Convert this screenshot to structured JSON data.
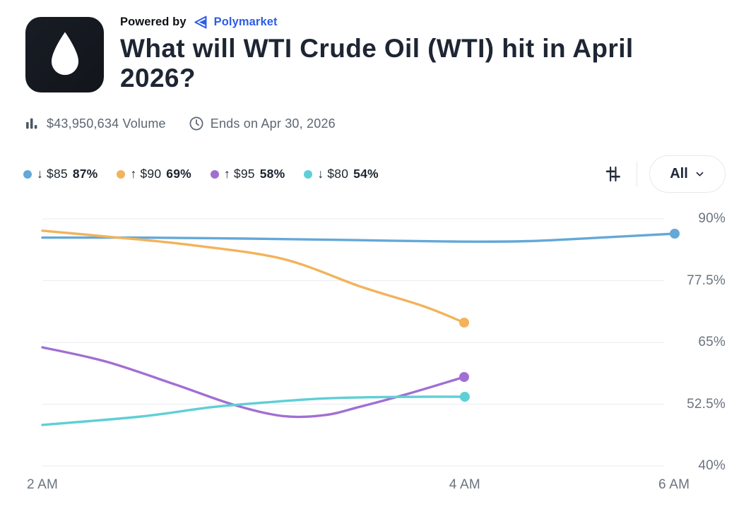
{
  "header": {
    "powered_by": "Powered by",
    "brand": "Polymarket",
    "title": "What will WTI Crude Oil (WTI) hit in April 2026?",
    "volume": "$43,950,634 Volume",
    "ends": "Ends on Apr 30, 2026"
  },
  "legend": {
    "items": [
      {
        "label": "↓ $85",
        "pct": "87%",
        "color": "#64a8d8"
      },
      {
        "label": "↑ $90",
        "pct": "69%",
        "color": "#f2b35c"
      },
      {
        "label": "↑ $95",
        "pct": "58%",
        "color": "#a16fd2"
      },
      {
        "label": "↓ $80",
        "pct": "54%",
        "color": "#5ecfd6"
      }
    ]
  },
  "controls": {
    "filter_icon": "sliders-icon",
    "all_label": "All",
    "chevron_icon": "chevron-down-icon"
  },
  "chart_data": {
    "type": "line",
    "title": "",
    "xlabel": "",
    "ylabel": "",
    "ylim": [
      40,
      90
    ],
    "grid": true,
    "legend_position": "top",
    "yticks": [
      {
        "label": "90%",
        "value": 90
      },
      {
        "label": "77.5%",
        "value": 77.5
      },
      {
        "label": "65%",
        "value": 65
      },
      {
        "label": "52.5%",
        "value": 52.5
      },
      {
        "label": "40%",
        "value": 40
      }
    ],
    "xticks": [
      {
        "label": "2 AM",
        "f": 0
      },
      {
        "label": "4 AM",
        "f": 0.668
      },
      {
        "label": "6 AM",
        "f": 0.999
      }
    ],
    "series": [
      {
        "name": "↓ $85",
        "current_pct": 87,
        "color": "#64a8d8",
        "points": [
          [
            0,
            86.2
          ],
          [
            0.156,
            86.2
          ],
          [
            0.324,
            86.0
          ],
          [
            0.492,
            85.7
          ],
          [
            0.659,
            85.4
          ],
          [
            0.771,
            85.5
          ],
          [
            0.883,
            86.2
          ],
          [
            1.0,
            87.0
          ]
        ]
      },
      {
        "name": "↑ $90",
        "current_pct": 69,
        "color": "#f2b35c",
        "points": [
          [
            0,
            87.6
          ],
          [
            0.112,
            86.3
          ],
          [
            0.235,
            84.7
          ],
          [
            0.38,
            81.9
          ],
          [
            0.503,
            76.3
          ],
          [
            0.603,
            72.3
          ],
          [
            0.667,
            69.0
          ]
        ]
      },
      {
        "name": "↑ $95",
        "current_pct": 58,
        "color": "#a16fd2",
        "points": [
          [
            0,
            64.0
          ],
          [
            0.101,
            61.1
          ],
          [
            0.212,
            56.4
          ],
          [
            0.302,
            52.4
          ],
          [
            0.38,
            50.1
          ],
          [
            0.447,
            50.3
          ],
          [
            0.503,
            52.0
          ],
          [
            0.581,
            54.7
          ],
          [
            0.667,
            58.0
          ]
        ]
      },
      {
        "name": "↓ $80",
        "current_pct": 54,
        "color": "#5ecfd6",
        "points": [
          [
            0,
            48.3
          ],
          [
            0.156,
            50.0
          ],
          [
            0.268,
            51.9
          ],
          [
            0.358,
            52.9
          ],
          [
            0.436,
            53.6
          ],
          [
            0.514,
            53.9
          ],
          [
            0.603,
            54.0
          ],
          [
            0.668,
            54.0
          ]
        ]
      }
    ]
  }
}
